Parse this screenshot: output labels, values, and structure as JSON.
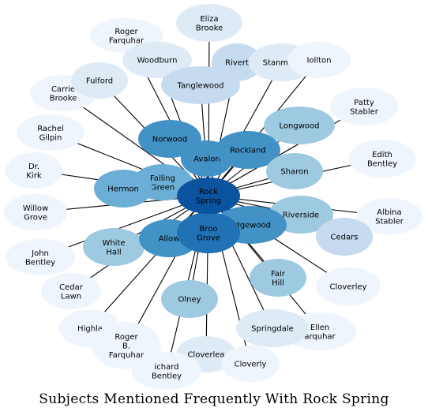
{
  "title": "Subjects Mentioned Frequently With Rock Spring",
  "colors": {
    "center": "#0a539e",
    "dark": "#2171b5",
    "mid_dark": "#4292c6",
    "mid": "#6baed6",
    "light_mid": "#9ecae1",
    "light": "#c6dbef",
    "pale": "#deebf7",
    "palest": "#eff5fc",
    "edge": "#000000"
  },
  "center": {
    "name": "center-node-rock-spring",
    "label": [
      "Rock",
      "Spring"
    ],
    "color": "center"
  },
  "nodes": [
    {
      "name": "node-eliza-brooke",
      "label": [
        "Eliza",
        "Brooke"
      ],
      "color": "pale"
    },
    {
      "name": "node-roger-farquhar",
      "label": [
        "Roger",
        "Farquhar"
      ],
      "color": "palest"
    },
    {
      "name": "node-woodburn",
      "label": [
        "Woodburn"
      ],
      "color": "pale"
    },
    {
      "name": "node-riverton",
      "label": [
        "Rivert"
      ],
      "color": "light"
    },
    {
      "name": "node-stanmore",
      "label": [
        "Stanmore"
      ],
      "color": "pale"
    },
    {
      "name": "node-holton",
      "label": [
        "Iollton"
      ],
      "color": "palest"
    },
    {
      "name": "node-carrie-brooke",
      "label": [
        "Carrie",
        "Brooke"
      ],
      "color": "palest"
    },
    {
      "name": "node-fulford",
      "label": [
        "Fulford"
      ],
      "color": "pale"
    },
    {
      "name": "node-tanglewood",
      "label": [
        "Tanglewood"
      ],
      "color": "light"
    },
    {
      "name": "node-patty-stabler",
      "label": [
        "Patty",
        "Stabler"
      ],
      "color": "palest"
    },
    {
      "name": "node-rachel-gilpin",
      "label": [
        "Rachel",
        "Gilpin"
      ],
      "color": "palest"
    },
    {
      "name": "node-longwood",
      "label": [
        "Longwood"
      ],
      "color": "light_mid"
    },
    {
      "name": "node-norwood",
      "label": [
        "Norwood"
      ],
      "color": "mid_dark"
    },
    {
      "name": "node-avalon",
      "label": [
        "Avalon"
      ],
      "color": "mid_dark"
    },
    {
      "name": "node-rockland",
      "label": [
        "Rockland"
      ],
      "color": "mid_dark"
    },
    {
      "name": "node-edith-bentley",
      "label": [
        "Edith",
        "Bentley"
      ],
      "color": "palest"
    },
    {
      "name": "node-dr-kirk",
      "label": [
        "Dr.",
        "Kirk"
      ],
      "color": "palest"
    },
    {
      "name": "node-falling-green",
      "label": [
        "Falling",
        "Green"
      ],
      "color": "mid"
    },
    {
      "name": "node-sharon",
      "label": [
        "Sharon"
      ],
      "color": "light_mid"
    },
    {
      "name": "node-hermon",
      "label": [
        "Hermon"
      ],
      "color": "mid"
    },
    {
      "name": "node-willow-grove",
      "label": [
        "Willow",
        "Grove"
      ],
      "color": "palest"
    },
    {
      "name": "node-albina-stabler",
      "label": [
        "Albina",
        "Stabler"
      ],
      "color": "palest"
    },
    {
      "name": "node-riverside",
      "label": [
        "Riverside"
      ],
      "color": "light_mid"
    },
    {
      "name": "node-edgewood",
      "label": [
        "Edgewood"
      ],
      "color": "mid_dark"
    },
    {
      "name": "node-cedars",
      "label": [
        "Cedars"
      ],
      "color": "light"
    },
    {
      "name": "node-white-hall",
      "label": [
        "White",
        "Hall"
      ],
      "color": "light_mid"
    },
    {
      "name": "node-allow",
      "label": [
        "Allow"
      ],
      "color": "mid_dark"
    },
    {
      "name": "node-brooke-grove",
      "label": [
        "Broo",
        "Grove"
      ],
      "color": "dark"
    },
    {
      "name": "node-john-bentley",
      "label": [
        "John",
        "Bentley"
      ],
      "color": "palest"
    },
    {
      "name": "node-fair-hill",
      "label": [
        "Fair",
        "Hill"
      ],
      "color": "light_mid"
    },
    {
      "name": "node-cedar-lawn",
      "label": [
        "Cedar",
        "Lawn"
      ],
      "color": "palest"
    },
    {
      "name": "node-cloverley",
      "label": [
        "Cloverley"
      ],
      "color": "palest"
    },
    {
      "name": "node-olney",
      "label": [
        "Olney"
      ],
      "color": "light_mid"
    },
    {
      "name": "node-highlands",
      "label": [
        "Highla"
      ],
      "color": "palest"
    },
    {
      "name": "node-ellen-farquhar",
      "label": [
        "Ellen",
        "arquhar"
      ],
      "color": "palest"
    },
    {
      "name": "node-springdale",
      "label": [
        "Springdale"
      ],
      "color": "pale"
    },
    {
      "name": "node-roger-b-farquhar",
      "label": [
        "Roger",
        "B.",
        "Farquhar"
      ],
      "color": "palest"
    },
    {
      "name": "node-cloverlea",
      "label": [
        "Cloverlea"
      ],
      "color": "pale"
    },
    {
      "name": "node-richard-bentley",
      "label": [
        "ichard",
        "Bentley"
      ],
      "color": "palest"
    },
    {
      "name": "node-cloverly",
      "label": [
        "Cloverly"
      ],
      "color": "palest"
    }
  ]
}
